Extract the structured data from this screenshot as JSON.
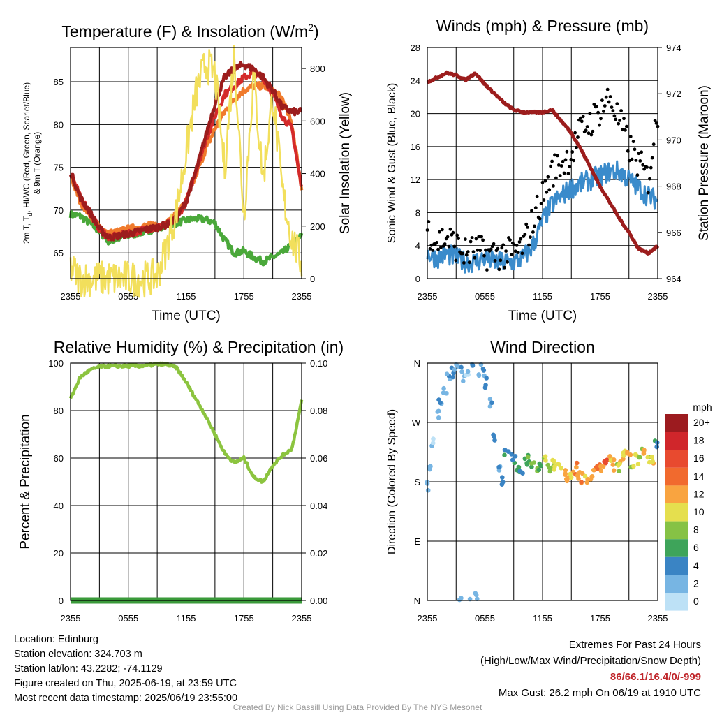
{
  "chart_data": [
    {
      "type": "line",
      "title": "Temperature (F) & Insolation (W/m",
      "title_sup": "2",
      "title_end": ")",
      "xlabel": "Time (UTC)",
      "ylabel_lines": [
        "2m T, T",
        "d",
        ", HI/WC (Red, Green, Scarlet/Blue)",
        "& 9m T (Orange)"
      ],
      "y2label": "Solar Insolation (Yellow)",
      "x_ticks": [
        "2355",
        "0555",
        "1155",
        "1755",
        "2355"
      ],
      "y_ticks": [
        65,
        70,
        75,
        80,
        85
      ],
      "y2_ticks": [
        0,
        200,
        400,
        600,
        800
      ],
      "ylim": [
        62,
        89
      ],
      "y2lim": [
        0,
        880
      ],
      "x": [
        0,
        1,
        2,
        3,
        4,
        5,
        6,
        7,
        8,
        9,
        10,
        11,
        12,
        13,
        14,
        15,
        16,
        17,
        18,
        19,
        20,
        21,
        22,
        23,
        24
      ],
      "series": [
        {
          "color": "#4aa83a",
          "values": [
            69.5,
            69.3,
            68.5,
            67.5,
            66.3,
            66.7,
            67.0,
            67.3,
            67.6,
            67.9,
            68.3,
            68.5,
            68.8,
            69.0,
            68.9,
            68.5,
            66.5,
            65.0,
            65.2,
            64.5,
            64.0,
            64.5,
            65.0,
            66.0,
            67.0
          ]
        },
        {
          "color": "#f07b2d",
          "values": [
            74.0,
            71.0,
            69.5,
            68.0,
            67.3,
            67.5,
            67.8,
            68.0,
            68.2,
            68.3,
            68.5,
            69.5,
            71.0,
            74.0,
            77.0,
            79.5,
            81.5,
            83.0,
            84.0,
            84.5,
            84.5,
            84.0,
            83.0,
            80.0,
            72.5
          ]
        },
        {
          "color": "#d42a2a",
          "values": [
            74.5,
            71.5,
            69.8,
            67.8,
            66.8,
            67.0,
            67.2,
            67.5,
            67.8,
            68.0,
            68.3,
            69.0,
            71.0,
            74.5,
            78.0,
            81.0,
            83.5,
            84.5,
            85.5,
            86.0,
            85.5,
            83.5,
            81.0,
            79.5,
            72.5
          ]
        },
        {
          "color": "#9c1d1d",
          "values": [
            74.5,
            71.5,
            69.8,
            67.8,
            66.8,
            67.0,
            67.2,
            67.5,
            67.8,
            68.0,
            68.3,
            69.0,
            71.0,
            74.5,
            78.5,
            82.5,
            85.5,
            86.5,
            87.0,
            86.5,
            85.5,
            84.0,
            82.0,
            81.5,
            81.5
          ]
        },
        {
          "color": "#f2df5c",
          "axis": "right",
          "values": [
            40,
            0,
            0,
            0,
            0,
            0,
            0,
            0,
            0,
            10,
            120,
            260,
            480,
            700,
            820,
            780,
            420,
            860,
            240,
            770,
            380,
            700,
            330,
            150,
            60
          ]
        }
      ]
    },
    {
      "type": "line",
      "title": "Winds (mph) & Pressure (mb)",
      "xlabel": "Time (UTC)",
      "ylabel": "Sonic Wind & Gust (Blue, Black)",
      "y2label": "Station Pressure (Maroon)",
      "x_ticks": [
        "2355",
        "0555",
        "1155",
        "1755",
        "2355"
      ],
      "y_ticks": [
        0,
        4,
        8,
        12,
        16,
        20,
        24,
        28
      ],
      "y2_ticks": [
        964,
        966,
        968,
        970,
        972,
        974
      ],
      "ylim": [
        0,
        28
      ],
      "y2lim": [
        964,
        974
      ],
      "x": [
        0,
        1,
        2,
        3,
        4,
        5,
        6,
        7,
        8,
        9,
        10,
        11,
        12,
        13,
        14,
        15,
        16,
        17,
        18,
        19,
        20,
        21,
        22,
        23,
        24
      ],
      "series": [
        {
          "color": "#3a8bcb",
          "values": [
            3.0,
            2.5,
            3.0,
            2.5,
            2.0,
            2.0,
            2.5,
            2.0,
            2.0,
            2.0,
            2.5,
            4.0,
            7.0,
            9.0,
            10.0,
            11.0,
            11.5,
            12.0,
            12.5,
            13.0,
            13.0,
            12.0,
            11.0,
            10.0,
            9.5
          ]
        },
        {
          "color": "#000000",
          "type": "scatter",
          "values": [
            6.0,
            4.5,
            5.0,
            4.0,
            3.0,
            3.5,
            3.0,
            3.0,
            3.0,
            3.0,
            4.0,
            7.0,
            10.0,
            13.0,
            14.0,
            15.0,
            18.0,
            19.0,
            20.5,
            22.0,
            19.0,
            16.0,
            14.0,
            12.0,
            20.0
          ]
        },
        {
          "color": "#9c1d1d",
          "axis": "right",
          "values": [
            972.5,
            972.7,
            972.9,
            972.8,
            972.6,
            972.9,
            972.4,
            972.0,
            971.6,
            971.3,
            971.2,
            971.2,
            971.2,
            971.3,
            970.8,
            970.3,
            969.6,
            968.8,
            968.0,
            967.3,
            966.6,
            966.0,
            965.3,
            965.1,
            965.4
          ]
        }
      ]
    },
    {
      "type": "line",
      "title": "Relative Humidity (%) & Precipitation (in)",
      "ylabel": "Percent & Precipitation",
      "x_ticks": [
        "2355",
        "0555",
        "1155",
        "1755",
        "2355"
      ],
      "y_ticks": [
        0,
        20,
        40,
        60,
        80,
        100
      ],
      "y2_ticks": [
        "0.00",
        "0.02",
        "0.04",
        "0.06",
        "0.08",
        "0.10"
      ],
      "ylim": [
        0,
        100
      ],
      "y2lim": [
        0,
        0.1
      ],
      "x": [
        0,
        1,
        2,
        3,
        4,
        5,
        6,
        7,
        8,
        9,
        10,
        11,
        12,
        13,
        14,
        15,
        16,
        17,
        18,
        19,
        20,
        21,
        22,
        23,
        24
      ],
      "series": [
        {
          "color": "#8cc43f",
          "values": [
            85,
            94,
            97,
            98.5,
            98.7,
            98.7,
            98.8,
            98.8,
            99.0,
            99.5,
            99.5,
            98.0,
            92.0,
            85.0,
            78.0,
            70.0,
            62.0,
            58.0,
            60.0,
            52.0,
            50.0,
            57.0,
            61.0,
            64.0,
            84.0
          ]
        },
        {
          "color": "#3a9a3a",
          "axis": "right",
          "values": [
            0,
            0,
            0,
            0,
            0,
            0,
            0,
            0,
            0,
            0,
            0,
            0,
            0,
            0,
            0,
            0,
            0,
            0,
            0,
            0,
            0,
            0,
            0,
            0,
            0
          ]
        }
      ]
    },
    {
      "type": "scatter",
      "title": "Wind Direction",
      "ylabel": "Direction (Colored By Speed)",
      "x_ticks": [
        "2355",
        "0555",
        "1155",
        "1755",
        "2355"
      ],
      "y_ticks": [
        "N",
        "E",
        "S",
        "W",
        "N"
      ],
      "legend_title": "mph",
      "legend_labels": [
        "20+",
        "18",
        "16",
        "14",
        "12",
        "10",
        "8",
        "6",
        "4",
        "2",
        "0"
      ],
      "legend_colors": [
        "#9c1b1f",
        "#d0262b",
        "#e84a2f",
        "#f16a2e",
        "#f9a440",
        "#e5df4e",
        "#86c245",
        "#3ea45a",
        "#3a84c4",
        "#77b5e3",
        "#bde1f6"
      ],
      "x": [
        0.0,
        0.3,
        0.6,
        1.0,
        1.4,
        1.8,
        2.2,
        2.6,
        3.0,
        3.4,
        3.8,
        4.2,
        4.6,
        5.0,
        5.4,
        5.8,
        6.2,
        6.6,
        7.0,
        7.4,
        7.8,
        8.2,
        8.6,
        9.0,
        9.4,
        9.8,
        10.2,
        10.6,
        11.0,
        11.4,
        11.8,
        12.2,
        12.6,
        13.0,
        13.4,
        13.8,
        14.2,
        14.6,
        15.0,
        15.4,
        15.8,
        16.2,
        16.6,
        17.0,
        17.4,
        17.8,
        18.2,
        18.6,
        19.0,
        19.4,
        19.8,
        20.2,
        20.6,
        21.0,
        21.4,
        21.8,
        22.2,
        22.6,
        23.0,
        23.4,
        23.8
      ],
      "direction": [
        175,
        200,
        240,
        280,
        300,
        320,
        340,
        345,
        350,
        355,
        340,
        350,
        355,
        10,
        350,
        345,
        330,
        300,
        250,
        200,
        180,
        220,
        230,
        210,
        200,
        200,
        210,
        215,
        210,
        200,
        205,
        210,
        200,
        210,
        205,
        200,
        195,
        190,
        195,
        200,
        190,
        185,
        185,
        190,
        195,
        200,
        205,
        210,
        215,
        205,
        200,
        210,
        220,
        230,
        210,
        215,
        225,
        220,
        215,
        210,
        240
      ],
      "speed": [
        1,
        2,
        1,
        2,
        3,
        2,
        3,
        4,
        2,
        3,
        2,
        1,
        3,
        2,
        2,
        3,
        4,
        3,
        4,
        3,
        4,
        5,
        4,
        5,
        6,
        4,
        6,
        7,
        7,
        8,
        6,
        9,
        8,
        9,
        10,
        10,
        11,
        12,
        11,
        13,
        12,
        13,
        11,
        12,
        13,
        14,
        12,
        15,
        11,
        13,
        9,
        11,
        10,
        12,
        9,
        10,
        8,
        12,
        9,
        11,
        5
      ]
    }
  ],
  "info": {
    "location": "Location: Edinburg",
    "elevation": "Station elevation: 324.703 m",
    "latlon": "Station lat/lon: 43.2282; -74.1129",
    "created": "Figure created on Thu, 2025-06-19, at 23:59 UTC",
    "recent": "Most recent data timestamp: 2025/06/19 23:55:00"
  },
  "extremes": {
    "title": "Extremes For Past 24 Hours",
    "subtitle": "(High/Low/Max Wind/Precipitation/Snow Depth)",
    "values": "86/66.1/16.4/0/-999",
    "max_gust": "Max Gust: 26.2 mph On 06/19 at 1910 UTC"
  },
  "credit": "Created By Nick Bassill Using Data Provided By The NYS Mesonet"
}
